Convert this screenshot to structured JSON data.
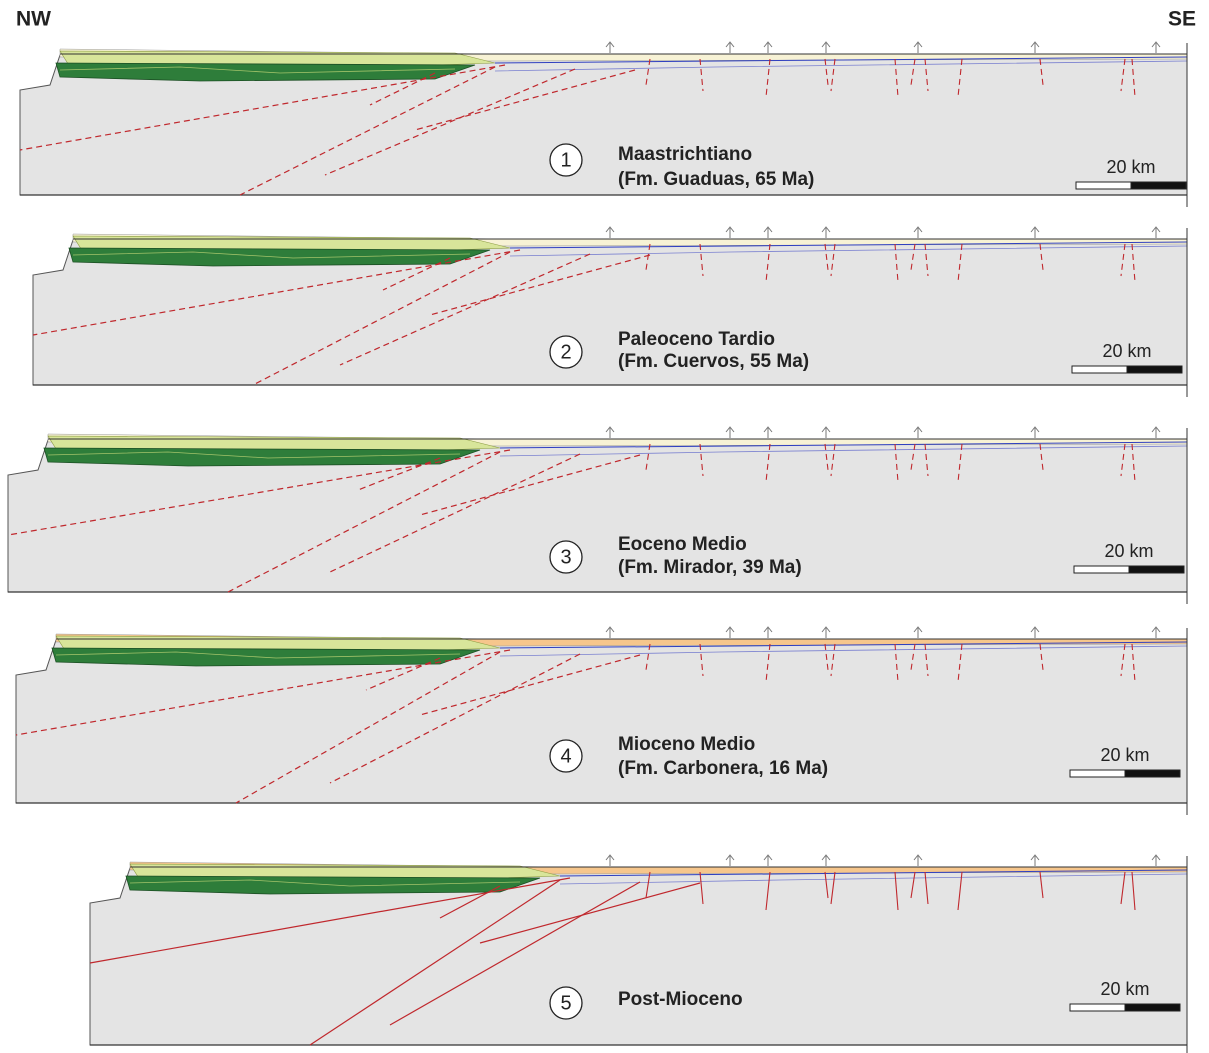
{
  "header": {
    "left": "NW",
    "right": "SE"
  },
  "panels": [
    {
      "number": "1",
      "title": "Maastrichtiano",
      "subtitle": "(Fm. Guaduas, 65 Ma)",
      "scale": "20 km"
    },
    {
      "number": "2",
      "title": "Paleoceno Tardio",
      "subtitle": "(Fm. Cuervos, 55 Ma)",
      "scale": "20 km"
    },
    {
      "number": "3",
      "title": "Eoceno Medio",
      "subtitle": "(Fm. Mirador, 39 Ma)",
      "scale": "20 km"
    },
    {
      "number": "4",
      "title": "Mioceno Medio",
      "subtitle": "(Fm. Carbonera, 16 Ma)",
      "scale": "20 km"
    },
    {
      "number": "5",
      "title": "Post-Mioceno",
      "scale": "20 km"
    }
  ]
}
